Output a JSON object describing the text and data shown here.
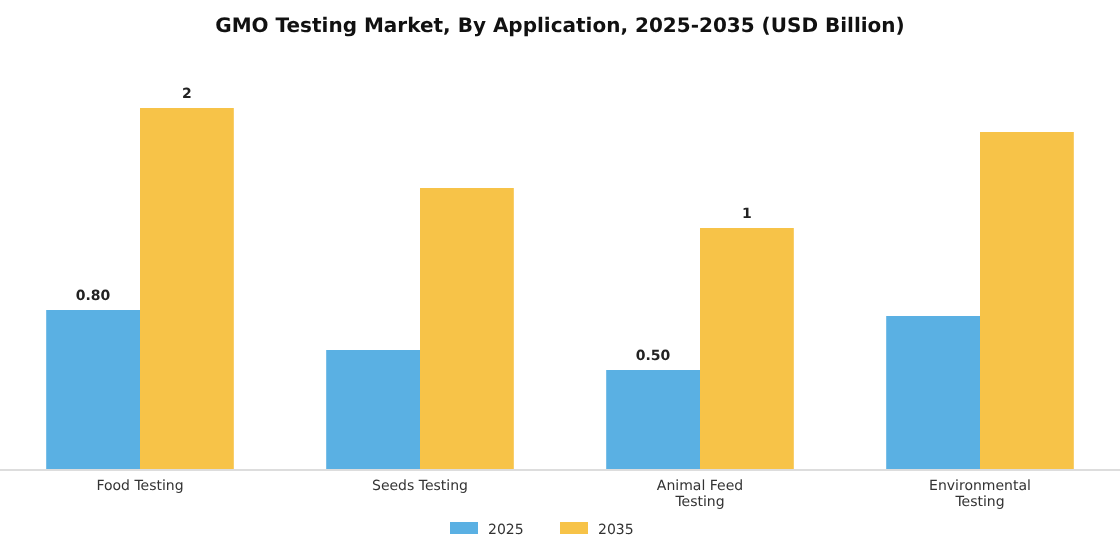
{
  "chart_data": {
    "type": "bar",
    "title": "GMO Testing Market, By Application, 2025-2035 (USD Billion)",
    "categories": [
      "Food Testing",
      "Seeds Testing",
      "Animal Feed Testing",
      "Environmental Testing"
    ],
    "series": [
      {
        "name": "2025",
        "color": "#5ab0e3",
        "values": [
          0.8,
          0.6,
          0.5,
          0.77
        ],
        "value_labels": [
          "0.80",
          null,
          "0.50",
          null
        ]
      },
      {
        "name": "2035",
        "color": "#f7c348",
        "values": [
          1.81,
          1.41,
          1.21,
          1.69
        ],
        "value_labels": [
          "2",
          null,
          "1",
          null
        ]
      }
    ],
    "legend": "bottom",
    "grid": false
  }
}
